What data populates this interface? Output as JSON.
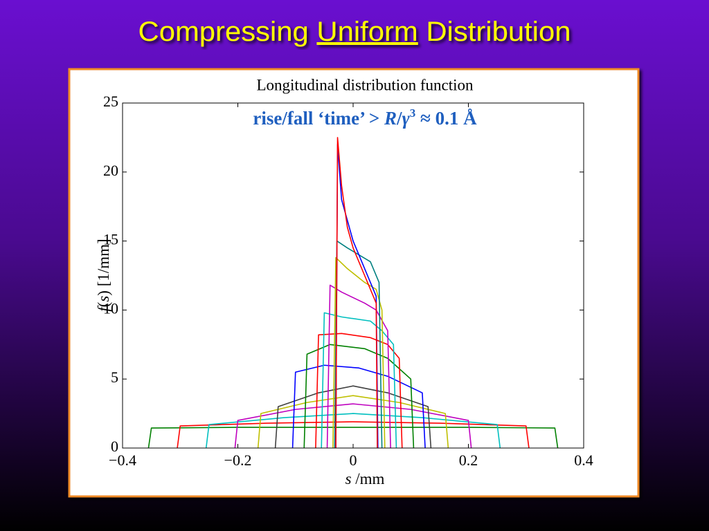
{
  "slide": {
    "title_parts": [
      "Compressing ",
      "Uniform",
      " Distribution"
    ]
  },
  "chart_data": {
    "type": "line",
    "title": "Longitudinal distribution function",
    "annotation_parts": [
      "rise/fall ‘time’ > ",
      "R",
      "/",
      "γ",
      "3",
      " ≈ 0.1 Å"
    ],
    "x_label_parts": [
      "s",
      " /mm"
    ],
    "y_label_parts": [
      "f",
      "(",
      "s",
      ") [1/mm]"
    ],
    "xlim": [
      -0.4,
      0.4
    ],
    "ylim": [
      0,
      25
    ],
    "xticks": [
      {
        "value": -0.4,
        "label": "−0.4"
      },
      {
        "value": -0.2,
        "label": "−0.2"
      },
      0,
      0.2,
      0.4
    ],
    "yticks": [
      0,
      5,
      10,
      15,
      20,
      25
    ],
    "grid": false,
    "series": [
      {
        "color": "#008000",
        "x": [
          -0.355,
          -0.35,
          -0.2,
          0,
          0.2,
          0.35,
          0.355
        ],
        "values": [
          0,
          1.45,
          1.5,
          1.5,
          1.5,
          1.45,
          0
        ]
      },
      {
        "color": "#ff0000",
        "x": [
          -0.305,
          -0.3,
          -0.15,
          0,
          0.15,
          0.3,
          0.305
        ],
        "values": [
          0,
          1.6,
          1.8,
          1.9,
          1.8,
          1.6,
          0
        ]
      },
      {
        "color": "#00bfbf",
        "x": [
          -0.255,
          -0.25,
          -0.12,
          0,
          0.12,
          0.25,
          0.255
        ],
        "values": [
          0,
          1.7,
          2.2,
          2.5,
          2.2,
          1.7,
          0
        ]
      },
      {
        "color": "#bf00bf",
        "x": [
          -0.205,
          -0.2,
          -0.1,
          0,
          0.1,
          0.2,
          0.205
        ],
        "values": [
          0,
          2.0,
          2.8,
          3.2,
          2.8,
          2.0,
          0
        ]
      },
      {
        "color": "#bfbf00",
        "x": [
          -0.165,
          -0.16,
          -0.08,
          0,
          0.08,
          0.16,
          0.165
        ],
        "values": [
          0,
          2.5,
          3.3,
          3.8,
          3.3,
          2.5,
          0
        ]
      },
      {
        "color": "#404040",
        "x": [
          -0.135,
          -0.13,
          -0.06,
          0,
          0.06,
          0.13,
          0.135
        ],
        "values": [
          0,
          3.0,
          4.0,
          4.5,
          4.0,
          3.0,
          0
        ]
      },
      {
        "color": "#0000ff",
        "x": [
          -0.105,
          -0.1,
          -0.05,
          0.01,
          0.06,
          0.12,
          0.125
        ],
        "values": [
          0,
          5.5,
          6,
          5.8,
          5.2,
          4,
          0
        ]
      },
      {
        "color": "#008000",
        "x": [
          -0.085,
          -0.08,
          -0.04,
          0.02,
          0.06,
          0.1,
          0.105
        ],
        "values": [
          0,
          6.8,
          7.5,
          7.2,
          6.5,
          5,
          0
        ]
      },
      {
        "color": "#ff0000",
        "x": [
          -0.065,
          -0.06,
          -0.02,
          0.03,
          0.06,
          0.08,
          0.085
        ],
        "values": [
          0,
          8.2,
          8.3,
          8.0,
          7.5,
          6.5,
          0
        ]
      },
      {
        "color": "#00bfbf",
        "x": [
          -0.055,
          -0.05,
          -0.02,
          0.03,
          0.05,
          0.07,
          0.075
        ],
        "values": [
          0,
          9.8,
          9.5,
          9.2,
          8.5,
          7.5,
          0
        ]
      },
      {
        "color": "#bf00bf",
        "x": [
          -0.045,
          -0.04,
          -0.02,
          0.02,
          0.04,
          0.06,
          0.065
        ],
        "values": [
          0,
          11.8,
          11.3,
          10.5,
          10,
          8.5,
          0
        ]
      },
      {
        "color": "#bfbf00",
        "x": [
          -0.035,
          -0.03,
          -0.01,
          0.02,
          0.04,
          0.05,
          0.055
        ],
        "values": [
          0,
          13.8,
          13,
          12,
          11.5,
          10,
          0
        ]
      },
      {
        "color": "#008080",
        "x": [
          -0.032,
          -0.028,
          -0.01,
          0.01,
          0.03,
          0.045,
          0.05
        ],
        "values": [
          0,
          15,
          14.5,
          14,
          13.5,
          12,
          0
        ]
      },
      {
        "color": "#0000ff",
        "x": [
          -0.03,
          -0.027,
          -0.02,
          0,
          0.02,
          0.04,
          0.043
        ],
        "values": [
          0,
          22,
          18,
          15,
          13,
          11,
          0
        ]
      },
      {
        "color": "#ff0000",
        "x": [
          -0.03,
          -0.027,
          -0.02,
          -0.01,
          0,
          0.02,
          0.04,
          0.042
        ],
        "values": [
          0,
          22.5,
          19,
          16,
          14.5,
          12.5,
          10.5,
          0
        ]
      }
    ]
  }
}
